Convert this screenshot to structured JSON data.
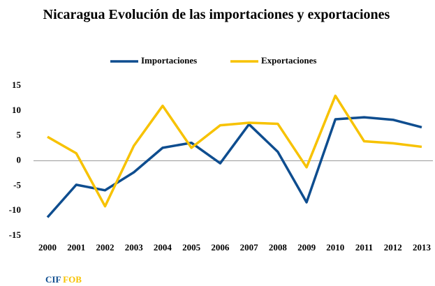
{
  "chart_data": {
    "type": "line",
    "title": "Nicaragua Evolución de las importaciones y exportaciones",
    "categories": [
      "2000",
      "2001",
      "2002",
      "2003",
      "2004",
      "2005",
      "2006",
      "2007",
      "2008",
      "2009",
      "2010",
      "2011",
      "2012",
      "2013"
    ],
    "series": [
      {
        "name": "Importaciones",
        "color": "#0e4d8f",
        "values": [
          -11.3,
          -4.8,
          -5.9,
          -2.3,
          2.6,
          3.6,
          -0.5,
          7.3,
          1.8,
          -8.3,
          8.3,
          8.7,
          8.2,
          6.7
        ]
      },
      {
        "name": "Exportaciones",
        "color": "#f7c200",
        "values": [
          4.8,
          1.5,
          -9.1,
          3.0,
          11.0,
          2.6,
          7.1,
          7.6,
          7.4,
          -1.3,
          13.0,
          3.9,
          3.5,
          2.8
        ]
      }
    ],
    "ylim": [
      -15,
      15
    ],
    "yticks": [
      -15,
      -10,
      -5,
      0,
      5,
      10,
      15
    ],
    "grid": false,
    "legend": "top"
  },
  "footer": [
    "CIF",
    "FOB"
  ]
}
